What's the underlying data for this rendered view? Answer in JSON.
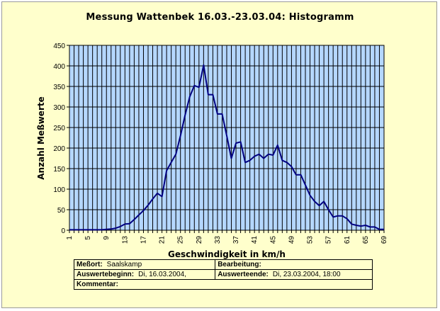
{
  "chart_data": {
    "type": "line",
    "title": "Messung Wattenbek 16.03.-23.03.04: Histogramm",
    "xlabel": "Geschwindigkeit in km/h",
    "ylabel": "Anzahl Meßwerte",
    "ylim": [
      0,
      450
    ],
    "yticks": [
      0,
      50,
      100,
      150,
      200,
      250,
      300,
      350,
      400,
      450
    ],
    "xlim": [
      1,
      69
    ],
    "xticks": [
      1,
      5,
      9,
      13,
      17,
      21,
      25,
      29,
      33,
      37,
      41,
      45,
      49,
      53,
      57,
      61,
      65,
      69
    ],
    "grid": true,
    "series": [
      {
        "color": "#000080",
        "x": [
          1,
          2,
          3,
          4,
          5,
          6,
          7,
          8,
          9,
          10,
          11,
          12,
          13,
          14,
          15,
          16,
          17,
          18,
          19,
          20,
          21,
          22,
          23,
          24,
          25,
          26,
          27,
          28,
          29,
          30,
          31,
          32,
          33,
          34,
          35,
          36,
          37,
          38,
          39,
          40,
          41,
          42,
          43,
          44,
          45,
          46,
          47,
          48,
          49,
          50,
          51,
          52,
          53,
          54,
          55,
          56,
          57,
          58,
          59,
          60,
          61,
          62,
          63,
          64,
          65,
          66,
          67,
          68,
          69
        ],
        "y": [
          1,
          1,
          1,
          1,
          1,
          1,
          1,
          1,
          2,
          3,
          5,
          9,
          15,
          16,
          26,
          37,
          48,
          61,
          76,
          90,
          82,
          145,
          165,
          185,
          230,
          280,
          325,
          352,
          348,
          402,
          330,
          330,
          283,
          283,
          230,
          175,
          212,
          215,
          165,
          170,
          180,
          185,
          175,
          185,
          183,
          207,
          170,
          165,
          155,
          135,
          135,
          110,
          85,
          70,
          60,
          70,
          50,
          32,
          35,
          35,
          28,
          15,
          12,
          10,
          12,
          8,
          8,
          2,
          2
        ]
      }
    ]
  },
  "info": {
    "messort_label": "Meßort:",
    "messort_value": "Saalskamp",
    "bearbeitung_label": "Bearbeitung:",
    "bearbeitung_value": "",
    "beginn_label": "Auswertebeginn:",
    "beginn_value": "Di, 16.03.2004,",
    "ende_label": "Auswerteende:",
    "ende_value": "Di, 23.03.2004, 18:00",
    "kommentar_label": "Kommentar:",
    "kommentar_value": ""
  },
  "colors": {
    "plot_background": "#b5d7ff",
    "page_background": "#ffffcc",
    "line": "#000080"
  }
}
